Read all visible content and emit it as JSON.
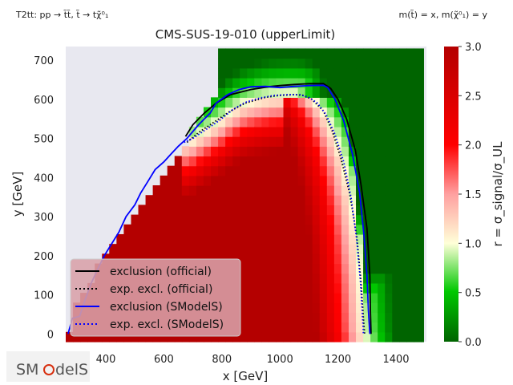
{
  "header": {
    "process": "T2tt: pp → t̃t̃, t̃ → tχ̃⁰₁",
    "mass_assignment": "m(t̃) = x, m(χ̃⁰₁) = y"
  },
  "logo": {
    "text_left": "SM",
    "text_right": "delS"
  },
  "chart_data": {
    "type": "heatmap",
    "title": "CMS-SUS-19-010 (upperLimit)",
    "xlabel": "x [GeV]",
    "ylabel": "y [GeV]",
    "colorbar_label": "r = σ_signal/σ_UL",
    "xlim": [
      262,
      1505
    ],
    "ylim": [
      -20,
      735
    ],
    "clim": [
      0,
      3
    ],
    "x_ticks": [
      400,
      600,
      800,
      1000,
      1200,
      1400
    ],
    "y_ticks": [
      0,
      100,
      200,
      300,
      400,
      500,
      600,
      700
    ],
    "colorbar_ticks": [
      0.0,
      0.5,
      1.0,
      1.5,
      2.0,
      2.5,
      3.0
    ],
    "colormap": [
      "#006400",
      "#00c800",
      "#ffffd8",
      "#ff0000",
      "#b40000"
    ],
    "background": "#e8e8f0",
    "grid_step_x": 25,
    "grid_step_y": 25,
    "region_boundary": {
      "x_min": 262,
      "x_max": 1495,
      "lower_left_edge": [
        [
          262,
          -20
        ],
        [
          300,
          80
        ],
        [
          340,
          130
        ],
        [
          400,
          200
        ],
        [
          460,
          260
        ],
        [
          520,
          320
        ],
        [
          580,
          380
        ],
        [
          640,
          440
        ],
        [
          690,
          510
        ],
        [
          740,
          560
        ],
        [
          780,
          620
        ],
        [
          800,
          735
        ]
      ]
    },
    "r_model": {
      "kind": "ratio to expected exclusion contour",
      "center_value_at_contour": 1.0,
      "max": 3.0,
      "min": 0.0
    },
    "series": [
      {
        "name": "exclusion (official)",
        "color": "#000000",
        "style": "solid",
        "points": [
          [
            675,
            505
          ],
          [
            700,
            535
          ],
          [
            740,
            565
          ],
          [
            780,
            590
          ],
          [
            830,
            612
          ],
          [
            900,
            625
          ],
          [
            960,
            632
          ],
          [
            1000,
            635
          ],
          [
            1050,
            638
          ],
          [
            1100,
            640
          ],
          [
            1150,
            640
          ],
          [
            1175,
            628
          ],
          [
            1200,
            600
          ],
          [
            1230,
            550
          ],
          [
            1260,
            470
          ],
          [
            1280,
            380
          ],
          [
            1300,
            270
          ],
          [
            1310,
            150
          ],
          [
            1312,
            60
          ],
          [
            1314,
            0
          ]
        ]
      },
      {
        "name": "exp. excl. (official)",
        "color": "#000000",
        "style": "dotted",
        "points": [
          [
            680,
            490
          ],
          [
            720,
            515
          ],
          [
            770,
            540
          ],
          [
            830,
            570
          ],
          [
            880,
            590
          ],
          [
            950,
            605
          ],
          [
            1000,
            610
          ],
          [
            1050,
            612
          ],
          [
            1080,
            610
          ],
          [
            1110,
            600
          ],
          [
            1150,
            570
          ],
          [
            1180,
            520
          ],
          [
            1210,
            450
          ],
          [
            1240,
            360
          ],
          [
            1265,
            250
          ],
          [
            1280,
            130
          ],
          [
            1288,
            40
          ],
          [
            1292,
            0
          ]
        ]
      },
      {
        "name": "exclusion (SModelS)",
        "color": "#0000ff",
        "style": "solid",
        "points": [
          [
            270,
            0
          ],
          [
            285,
            40
          ],
          [
            310,
            45
          ],
          [
            330,
            90
          ],
          [
            350,
            130
          ],
          [
            375,
            170
          ],
          [
            395,
            200
          ],
          [
            420,
            230
          ],
          [
            445,
            260
          ],
          [
            470,
            300
          ],
          [
            500,
            330
          ],
          [
            520,
            360
          ],
          [
            545,
            390
          ],
          [
            570,
            420
          ],
          [
            600,
            440
          ],
          [
            625,
            460
          ],
          [
            650,
            480
          ],
          [
            680,
            500
          ],
          [
            720,
            535
          ],
          [
            760,
            565
          ],
          [
            780,
            590
          ],
          [
            820,
            612
          ],
          [
            860,
            625
          ],
          [
            900,
            632
          ],
          [
            950,
            633
          ],
          [
            1000,
            630
          ],
          [
            1050,
            633
          ],
          [
            1100,
            635
          ],
          [
            1150,
            636
          ],
          [
            1165,
            630
          ],
          [
            1190,
            600
          ],
          [
            1220,
            545
          ],
          [
            1250,
            460
          ],
          [
            1275,
            360
          ],
          [
            1290,
            250
          ],
          [
            1300,
            150
          ],
          [
            1305,
            60
          ],
          [
            1310,
            0
          ]
        ]
      },
      {
        "name": "exp. excl. (SModelS)",
        "color": "#0000ff",
        "style": "dotted",
        "points": [
          [
            670,
            490
          ],
          [
            700,
            500
          ],
          [
            740,
            520
          ],
          [
            790,
            545
          ],
          [
            840,
            575
          ],
          [
            880,
            592
          ],
          [
            930,
            603
          ],
          [
            980,
            610
          ],
          [
            1030,
            612
          ],
          [
            1070,
            612
          ],
          [
            1100,
            605
          ],
          [
            1130,
            590
          ],
          [
            1160,
            560
          ],
          [
            1190,
            510
          ],
          [
            1220,
            440
          ],
          [
            1245,
            350
          ],
          [
            1265,
            240
          ],
          [
            1278,
            130
          ],
          [
            1285,
            40
          ],
          [
            1288,
            0
          ]
        ]
      }
    ],
    "legend": {
      "position": "lower-left",
      "background": "#d8a0a8"
    }
  }
}
